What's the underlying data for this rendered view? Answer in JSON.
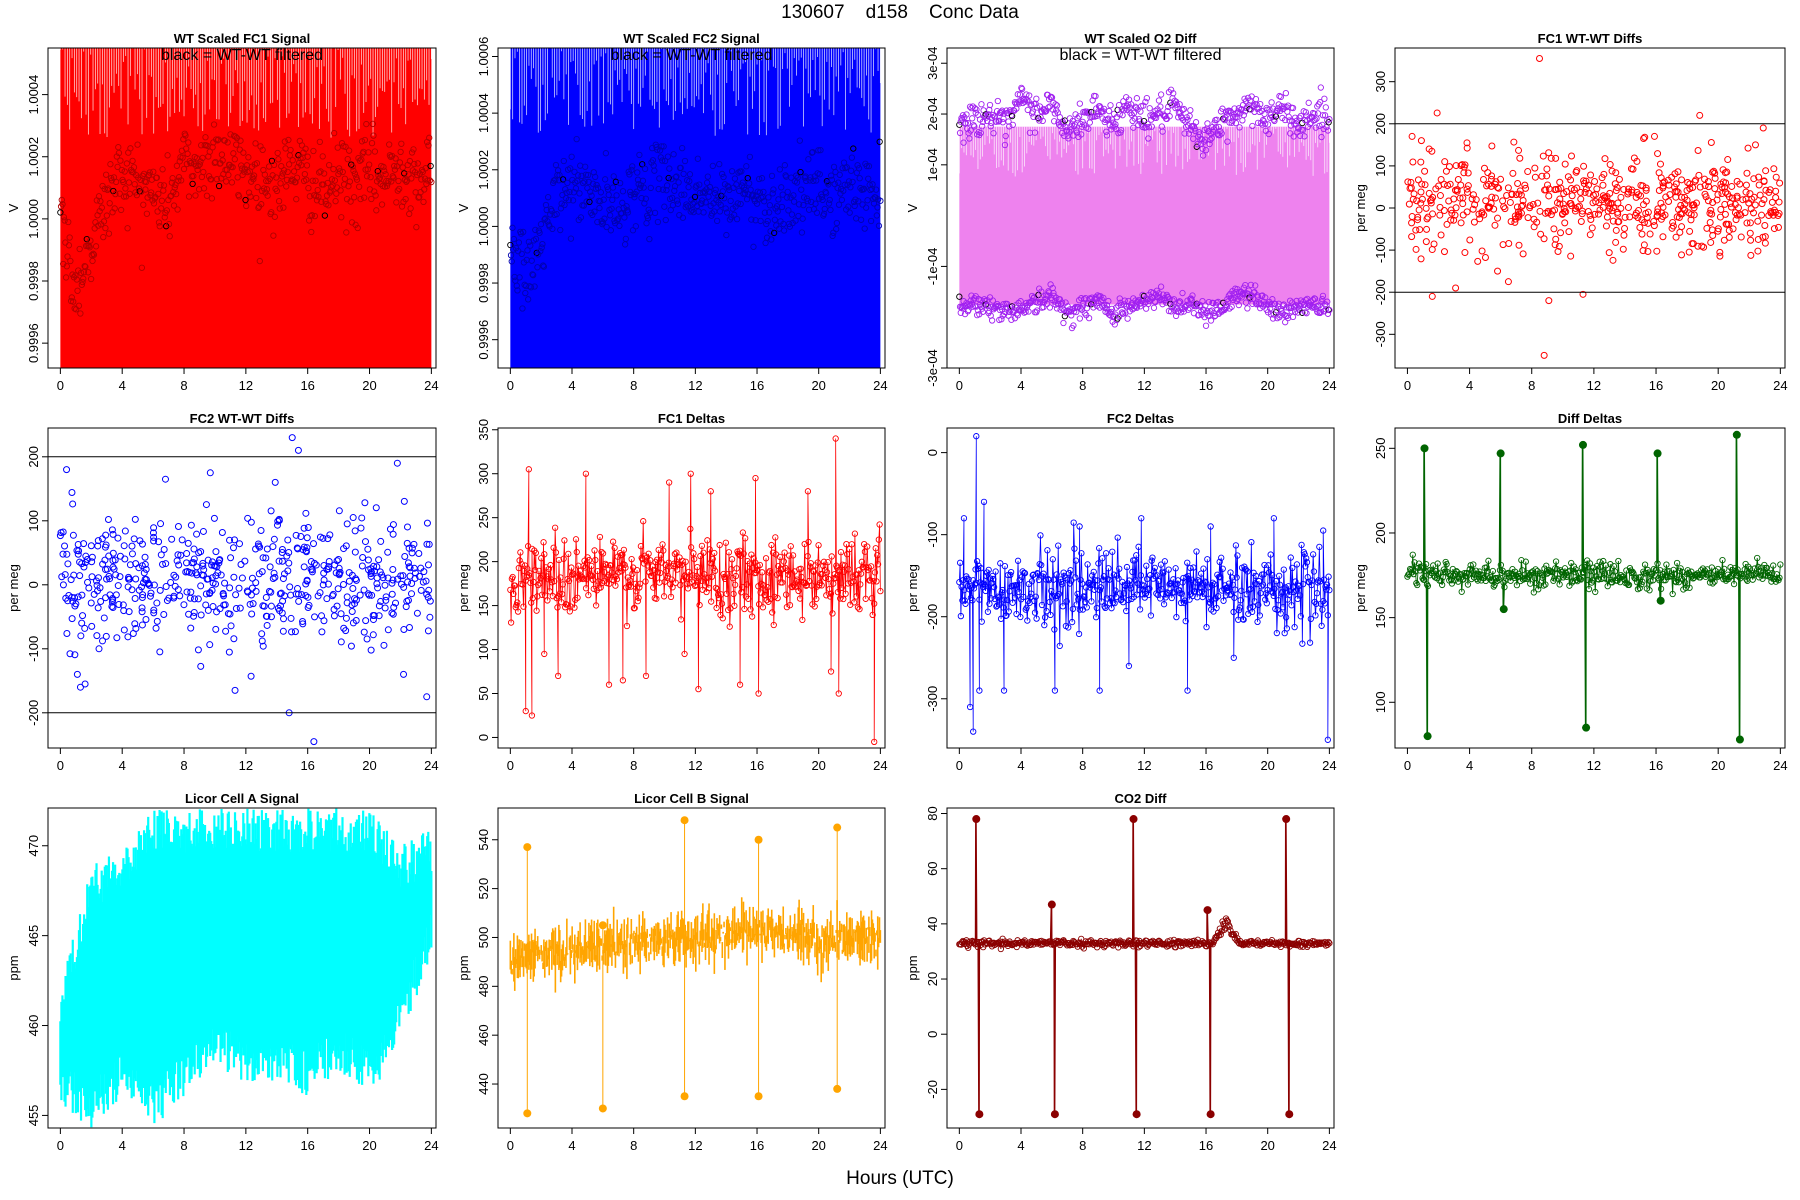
{
  "page": {
    "title": "130607    d158    Conc Data",
    "xlabel": "Hours (UTC)"
  },
  "chart_data": [
    {
      "type": "line",
      "title": "WT Scaled FC1 Signal",
      "annotation": "black = WT-WT filtered",
      "xlabel": "",
      "ylabel": "V",
      "xlim": [
        -0.8,
        24.3
      ],
      "ylim": [
        0.99952,
        1.00055
      ],
      "xticks": [
        0,
        4,
        8,
        12,
        16,
        20,
        24
      ],
      "yticks": [
        0.9996,
        0.9998,
        1.0,
        1.0002,
        1.0004
      ],
      "ytick_labels": [
        "0.9996",
        "0.9998",
        "1.0000",
        "1.0002",
        "1.0004"
      ],
      "grid": false,
      "series": [
        {
          "style": "band",
          "color": "#ff0000",
          "lower": 0.99952,
          "upper": 1.00055,
          "x": [
            0,
            24
          ]
        },
        {
          "style": "points",
          "color": "#b00000",
          "outline_color": "#000000",
          "x": [
            0,
            1,
            2,
            3,
            4,
            5,
            6,
            7,
            8,
            9,
            10,
            11,
            12,
            13,
            14,
            15,
            16,
            17,
            18,
            19,
            20,
            21,
            22,
            23,
            24
          ],
          "y": [
            0.99998,
            0.99978,
            0.99992,
            1.00006,
            1.00015,
            1.00012,
            1.00008,
            1.00005,
            1.00018,
            1.00016,
            1.00022,
            1.00018,
            1.00015,
            1.00014,
            1.0001,
            1.00018,
            1.00012,
            1.00008,
            1.00014,
            1.0001,
            1.00016,
            1.00012,
            1.00018,
            1.00014,
            1.00012
          ],
          "spread": 0.00012
        }
      ]
    },
    {
      "type": "line",
      "title": "WT Scaled FC2 Signal",
      "annotation": "black = WT-WT filtered",
      "xlabel": "",
      "ylabel": "V",
      "xlim": [
        -0.8,
        24.3
      ],
      "ylim": [
        0.9995,
        1.00063
      ],
      "xticks": [
        0,
        4,
        8,
        12,
        16,
        20,
        24
      ],
      "yticks": [
        0.9996,
        0.9998,
        1.0,
        1.0002,
        1.0004,
        1.0006
      ],
      "ytick_labels": [
        "0.9996",
        "0.9998",
        "1.0000",
        "1.0002",
        "1.0004",
        "1.0006"
      ],
      "grid": false,
      "series": [
        {
          "style": "band",
          "color": "#0000ff",
          "lower": 0.9995,
          "upper": 1.00063,
          "x": [
            0,
            24
          ]
        },
        {
          "style": "points",
          "color": "#0000b0",
          "outline_color": "#000000",
          "x": [
            0,
            1,
            2,
            3,
            4,
            5,
            6,
            7,
            8,
            9,
            10,
            11,
            12,
            13,
            14,
            15,
            16,
            17,
            18,
            19,
            20,
            21,
            22,
            23,
            24
          ],
          "y": [
            0.99995,
            0.9998,
            0.99995,
            1.0001,
            1.00015,
            1.00012,
            1.00008,
            1.00005,
            1.00014,
            1.00012,
            1.00018,
            1.00014,
            1.00012,
            1.0001,
            1.00008,
            1.00014,
            1.0001,
            1.00006,
            1.00012,
            1.0001,
            1.00014,
            1.0001,
            1.00015,
            1.00012,
            1.0001
          ],
          "spread": 0.00012
        }
      ]
    },
    {
      "type": "line",
      "title": "WT Scaled O2 Diff",
      "annotation": "black = WT-WT filtered",
      "xlabel": "",
      "ylabel": "V",
      "xlim": [
        -0.8,
        24.3
      ],
      "ylim": [
        -0.0003,
        0.00033
      ],
      "xticks": [
        0,
        4,
        8,
        12,
        16,
        20,
        24
      ],
      "yticks": [
        -0.0003,
        -0.0001,
        0.0001,
        0.0002,
        0.0003
      ],
      "ytick_labels": [
        "-3e-04",
        "-1e-04",
        "1e-04",
        "2e-04",
        "3e-04"
      ],
      "grid": false,
      "series": [
        {
          "style": "band",
          "color": "#ee82ee",
          "lower": -0.000175,
          "upper": 0.000175,
          "x": [
            0,
            24
          ]
        },
        {
          "style": "points",
          "color": "#a020f0",
          "outline_color": "#000000",
          "x": [
            0,
            1,
            2,
            3,
            4,
            5,
            6,
            7,
            8,
            9,
            10,
            11,
            12,
            13,
            14,
            15,
            16,
            17,
            18,
            19,
            20,
            21,
            22,
            23,
            24
          ],
          "y": [
            0.00018,
            0.00019,
            0.0002,
            0.00017,
            0.00023,
            0.0002,
            0.00022,
            0.00016,
            0.00019,
            0.00021,
            0.00018,
            0.00022,
            0.00019,
            0.0002,
            0.00021,
            0.00017,
            0.00015,
            0.00018,
            0.0002,
            0.00022,
            0.00019,
            0.00021,
            0.00018,
            0.0002,
            0.00019
          ],
          "spread": 3e-05
        },
        {
          "style": "points",
          "color": "#a020f0",
          "outline_color": "#000000",
          "x": [
            0,
            1,
            2,
            3,
            4,
            5,
            6,
            7,
            8,
            9,
            10,
            11,
            12,
            13,
            14,
            15,
            16,
            17,
            18,
            19,
            20,
            21,
            22,
            23,
            24
          ],
          "y": [
            -0.00018,
            -0.00017,
            -0.00018,
            -0.00019,
            -0.00018,
            -0.00017,
            -0.00016,
            -0.00019,
            -0.00018,
            -0.00017,
            -0.00019,
            -0.00018,
            -0.00017,
            -0.00016,
            -0.00018,
            -0.00017,
            -0.00019,
            -0.00018,
            -0.00016,
            -0.00015,
            -0.00018,
            -0.00019,
            -0.00018,
            -0.00017,
            -0.00018
          ],
          "spread": 2e-05
        }
      ]
    },
    {
      "type": "scatter",
      "title": "FC1 WT-WT Diffs",
      "xlabel": "",
      "ylabel": "per meg",
      "xlim": [
        -0.8,
        24.3
      ],
      "ylim": [
        -380,
        380
      ],
      "xticks": [
        0,
        4,
        8,
        12,
        16,
        20,
        24
      ],
      "yticks": [
        -300,
        -200,
        -100,
        0,
        100,
        200,
        300
      ],
      "hlines": [
        200,
        -200
      ],
      "grid": false,
      "series": [
        {
          "style": "points",
          "color": "#ff0000",
          "count": 560,
          "center": 10,
          "sd": 55,
          "x": [
            0.3,
            0.9,
            1.4,
            1.6,
            2.4,
            3.1,
            5.8,
            6.5,
            8.5,
            8.8,
            9.1,
            11.3,
            15.2,
            15.9,
            22.4,
            22.9
          ],
          "y": [
            170,
            160,
            140,
            -210,
            110,
            -190,
            -150,
            -175,
            355,
            -350,
            -220,
            -205,
            165,
            170,
            150,
            190
          ]
        }
      ]
    },
    {
      "type": "scatter",
      "title": "FC2 WT-WT Diffs",
      "xlabel": "",
      "ylabel": "per meg",
      "xlim": [
        -0.8,
        24.3
      ],
      "ylim": [
        -255,
        245
      ],
      "xticks": [
        0,
        4,
        8,
        12,
        16,
        20,
        24
      ],
      "yticks": [
        -200,
        -100,
        0,
        100,
        200
      ],
      "hlines": [
        200,
        -200
      ],
      "grid": false,
      "series": [
        {
          "style": "points",
          "color": "#0000ff",
          "count": 560,
          "center": 5,
          "sd": 50,
          "x": [
            0.4,
            1.1,
            1.3,
            1.6,
            2.5,
            6.8,
            9.7,
            11.3,
            13.9,
            14.8,
            15.0,
            15.4,
            16.4,
            21.8,
            22.2,
            23.7
          ],
          "y": [
            180,
            -140,
            -160,
            -155,
            -100,
            165,
            175,
            -165,
            160,
            -200,
            230,
            210,
            -245,
            190,
            -140,
            -175
          ]
        }
      ]
    },
    {
      "type": "line",
      "title": "FC1 Deltas",
      "xlabel": "",
      "ylabel": "per meg",
      "xlim": [
        -0.8,
        24.3
      ],
      "ylim": [
        -12,
        352
      ],
      "xticks": [
        0,
        4,
        8,
        12,
        16,
        20,
        24
      ],
      "yticks": [
        0,
        50,
        100,
        150,
        200,
        250,
        300,
        350
      ],
      "grid": false,
      "series": [
        {
          "style": "noisy",
          "color": "#ff0000",
          "count": 480,
          "center": 185,
          "sd": 22,
          "spikes_x": [
            1.0,
            1.2,
            1.4,
            2.2,
            3.1,
            4.9,
            6.4,
            7.3,
            8.8,
            10.3,
            11.3,
            11.7,
            12.2,
            13.0,
            14.9,
            15.9,
            16.1,
            19.3,
            20.8,
            21.1,
            21.3,
            23.6
          ],
          "spikes_y": [
            30,
            305,
            25,
            95,
            70,
            300,
            60,
            65,
            70,
            290,
            95,
            300,
            55,
            280,
            60,
            295,
            50,
            280,
            75,
            340,
            50,
            -5
          ]
        }
      ]
    },
    {
      "type": "line",
      "title": "FC2 Deltas",
      "xlabel": "",
      "ylabel": "per meg",
      "xlim": [
        -0.8,
        24.3
      ],
      "ylim": [
        -360,
        30
      ],
      "xticks": [
        0,
        4,
        8,
        12,
        16,
        20,
        24
      ],
      "yticks": [
        -300,
        -200,
        -100,
        0
      ],
      "grid": false,
      "series": [
        {
          "style": "noisy",
          "color": "#0000ff",
          "count": 480,
          "center": -165,
          "sd": 22,
          "spikes_x": [
            0.3,
            0.7,
            0.9,
            1.1,
            1.3,
            1.6,
            2.9,
            6.2,
            7.8,
            9.1,
            11.0,
            11.8,
            14.8,
            16.3,
            17.8,
            20.4,
            21.1,
            23.6,
            23.9
          ],
          "spikes_y": [
            -80,
            -310,
            -340,
            20,
            -290,
            -60,
            -290,
            -290,
            -90,
            -290,
            -260,
            -80,
            -290,
            -90,
            -250,
            -80,
            -220,
            -95,
            -350
          ]
        }
      ]
    },
    {
      "type": "line",
      "title": "Diff Deltas",
      "xlabel": "",
      "ylabel": "per meg",
      "xlim": [
        -0.8,
        24.3
      ],
      "ylim": [
        73,
        262
      ],
      "xticks": [
        0,
        4,
        8,
        12,
        16,
        20,
        24
      ],
      "yticks": [
        100,
        150,
        200,
        250
      ],
      "grid": false,
      "series": [
        {
          "style": "diffdeltas",
          "color": "#006400",
          "count": 420,
          "center": 175,
          "sd": 4,
          "events": [
            1.1,
            6.0,
            11.3,
            16.1,
            21.2
          ],
          "high": [
            250,
            247,
            252,
            247,
            258
          ],
          "low": [
            80,
            155,
            85,
            160,
            78
          ]
        }
      ]
    },
    {
      "type": "area",
      "title": "Licor Cell A Signal",
      "xlabel": "",
      "ylabel": "ppm",
      "xlim": [
        -0.8,
        24.3
      ],
      "ylim": [
        454.3,
        472.1
      ],
      "xticks": [
        0,
        4,
        8,
        12,
        16,
        20,
        24
      ],
      "yticks": [
        455,
        460,
        465,
        470
      ],
      "grid": false,
      "series": [
        {
          "style": "band",
          "color": "#00ffff",
          "count": 360,
          "x": [
            0,
            2,
            4,
            6,
            8,
            10,
            12,
            14,
            16,
            18,
            20,
            22,
            24
          ],
          "lower": [
            455.5,
            454.3,
            456,
            454.3,
            456,
            458,
            456.5,
            457,
            456,
            457.5,
            456,
            459,
            464
          ],
          "upper": [
            462,
            469,
            470,
            472.1,
            472.1,
            472.1,
            472.1,
            472.1,
            472.1,
            472.1,
            472.1,
            470,
            471
          ]
        }
      ]
    },
    {
      "type": "line",
      "title": "Licor Cell B Signal",
      "xlabel": "",
      "ylabel": "ppm",
      "xlim": [
        -0.8,
        24.3
      ],
      "ylim": [
        422,
        553
      ],
      "xticks": [
        0,
        4,
        8,
        12,
        16,
        20,
        24
      ],
      "yticks": [
        440,
        460,
        480,
        500,
        520,
        540
      ],
      "grid": false,
      "series": [
        {
          "style": "licorb",
          "color": "#ffa500",
          "count": 420,
          "trend_x": [
            0,
            4,
            8,
            12,
            16,
            20,
            24
          ],
          "trend_y": [
            492,
            494,
            498,
            500,
            503,
            499,
            500
          ],
          "sd": 4,
          "events": [
            1.1,
            6.0,
            11.3,
            16.1,
            21.2
          ],
          "high": [
            537,
            505,
            548,
            540,
            545
          ],
          "low": [
            428,
            430,
            435,
            435,
            438
          ]
        }
      ]
    },
    {
      "type": "line",
      "title": "CO2 Diff",
      "xlabel": "",
      "ylabel": "ppm",
      "xlim": [
        -0.8,
        24.3
      ],
      "ylim": [
        -34,
        82
      ],
      "xticks": [
        0,
        4,
        8,
        12,
        16,
        20,
        24
      ],
      "yticks": [
        -20,
        0,
        20,
        40,
        60,
        80
      ],
      "grid": false,
      "series": [
        {
          "style": "co2diff",
          "color": "#8b0000",
          "count": 420,
          "center": 33,
          "sd": 0.6,
          "events": [
            1.1,
            6.0,
            11.3,
            16.1,
            21.2
          ],
          "high": [
            78,
            47,
            78,
            45,
            78
          ],
          "low": [
            -29,
            -29,
            -29,
            -29,
            -29
          ],
          "bump_x": 17.3,
          "bump_y": 43
        }
      ]
    }
  ]
}
